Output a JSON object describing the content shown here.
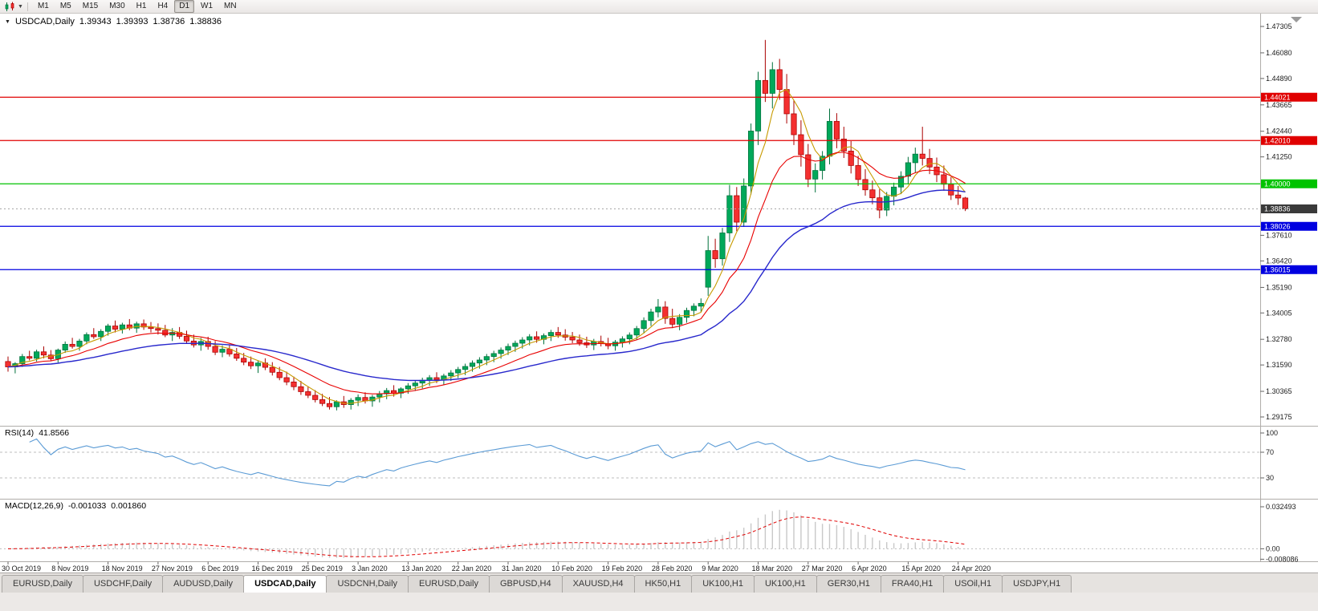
{
  "toolbar": {
    "timeframes": [
      "M1",
      "M5",
      "M15",
      "M30",
      "H1",
      "H4",
      "D1",
      "W1",
      "MN"
    ],
    "active_timeframe": "D1"
  },
  "chart": {
    "title_symbol": "USDCAD,Daily",
    "open": "1.39343",
    "high": "1.39393",
    "low": "1.38736",
    "close": "1.38836"
  },
  "indicators": {
    "rsi": {
      "name": "RSI(14)",
      "value": "41.8566"
    },
    "macd": {
      "name": "MACD(12,26,9)",
      "macd_value": "-0.001033",
      "signal_value": "0.001860"
    }
  },
  "tabs": [
    {
      "label": "EURUSD,Daily",
      "active": false
    },
    {
      "label": "USDCHF,Daily",
      "active": false
    },
    {
      "label": "AUDUSD,Daily",
      "active": false
    },
    {
      "label": "USDCAD,Daily",
      "active": true
    },
    {
      "label": "USDCNH,Daily",
      "active": false
    },
    {
      "label": "EURUSD,Daily",
      "active": false
    },
    {
      "label": "GBPUSD,H4",
      "active": false
    },
    {
      "label": "XAUUSD,H4",
      "active": false
    },
    {
      "label": "HK50,H1",
      "active": false
    },
    {
      "label": "UK100,H1",
      "active": false
    },
    {
      "label": "UK100,H1",
      "active": false
    },
    {
      "label": "GER30,H1",
      "active": false
    },
    {
      "label": "FRA40,H1",
      "active": false
    },
    {
      "label": "USOil,H1",
      "active": false
    },
    {
      "label": "USDJPY,H1",
      "active": false
    }
  ],
  "chart_data": {
    "type": "candlestick",
    "symbol": "USDCAD",
    "period": "Daily",
    "ylim": [
      1.28766,
      1.47901
    ],
    "y_axis_ticks": [
      "1.47305",
      "1.46080",
      "1.44890",
      "1.43665",
      "1.42440",
      "1.41250",
      "1.37610",
      "1.36420",
      "1.35190",
      "1.34005",
      "1.32780",
      "1.31590",
      "1.30365",
      "1.29175"
    ],
    "x_labels": [
      "30 Oct 2019",
      "8 Nov 2019",
      "18 Nov 2019",
      "27 Nov 2019",
      "6 Dec 2019",
      "16 Dec 2019",
      "25 Dec 2019",
      "3 Jan 2020",
      "13 Jan 2020",
      "22 Jan 2020",
      "31 Jan 2020",
      "10 Feb 2020",
      "19 Feb 2020",
      "28 Feb 2020",
      "9 Mar 2020",
      "18 Mar 2020",
      "27 Mar 2020",
      "6 Apr 2020",
      "15 Apr 2020",
      "24 Apr 2020"
    ],
    "label_every": 7,
    "colors": {
      "bull": "#00A85A",
      "bull_border": "#00713C",
      "bear": "#F43030",
      "bear_border": "#AA0000",
      "bid_line": "#A8A8A8",
      "bid_chip": "#3A3A3A",
      "rsi_line": "#5B9BD5",
      "level_dash": "#BDBDBD",
      "macd_bar": "#C8C8C8",
      "macd_signal": "#E00000",
      "separator": "#B0ADAA",
      "axis_tick": "#666666"
    },
    "h_lines": [
      {
        "price": 1.44021,
        "label": "1.44021",
        "color": "#E00000"
      },
      {
        "price": 1.4201,
        "label": "1.42010",
        "color": "#E00000"
      },
      {
        "price": 1.4,
        "label": "1.40000",
        "color": "#00C300"
      },
      {
        "price": 1.38026,
        "label": "1.38026",
        "color": "#0000E0"
      },
      {
        "price": 1.36015,
        "label": "1.36015",
        "color": "#0000E0"
      }
    ],
    "bid": {
      "price": 1.38836,
      "label": "1.38836"
    },
    "moving_averages": [
      {
        "type": "sma",
        "period": 5,
        "color": "#C79A00",
        "width": 1.1
      },
      {
        "type": "ema",
        "period": 13,
        "color": "#E80000",
        "width": 1.1
      },
      {
        "type": "ema",
        "period": 34,
        "color": "#2828CC",
        "width": 1.4
      }
    ],
    "rsi": {
      "period": 14,
      "ticks": [
        "100",
        "70",
        "30"
      ],
      "levels": [
        70,
        30
      ],
      "range": [
        0,
        100
      ]
    },
    "macd": {
      "fast": 12,
      "slow": 26,
      "signal": 9,
      "range": [
        -0.008086,
        0.032493
      ],
      "ticks": [
        {
          "label": "0.032493",
          "value": 0.032493
        },
        {
          "label": "0.00",
          "value": 0
        },
        {
          "label": "-0.008086",
          "value": -0.008086
        }
      ]
    },
    "candles": [
      [
        1.3175,
        1.3198,
        1.3128,
        1.315
      ],
      [
        1.315,
        1.3172,
        1.312,
        1.3165
      ],
      [
        1.3165,
        1.321,
        1.315,
        1.3198
      ],
      [
        1.3198,
        1.3225,
        1.318,
        1.319
      ],
      [
        1.319,
        1.323,
        1.3175,
        1.322
      ],
      [
        1.322,
        1.3245,
        1.319,
        1.3205
      ],
      [
        1.3205,
        1.3228,
        1.3178,
        1.3188
      ],
      [
        1.3188,
        1.3235,
        1.317,
        1.3228
      ],
      [
        1.3228,
        1.3268,
        1.3215,
        1.3255
      ],
      [
        1.3255,
        1.3285,
        1.3235,
        1.3245
      ],
      [
        1.3245,
        1.328,
        1.3225,
        1.327
      ],
      [
        1.327,
        1.331,
        1.3255,
        1.33
      ],
      [
        1.33,
        1.333,
        1.328,
        1.329
      ],
      [
        1.329,
        1.3325,
        1.327,
        1.3315
      ],
      [
        1.3315,
        1.335,
        1.3295,
        1.334
      ],
      [
        1.334,
        1.3365,
        1.331,
        1.3325
      ],
      [
        1.3325,
        1.3355,
        1.3305,
        1.3345
      ],
      [
        1.3345,
        1.3372,
        1.332,
        1.333
      ],
      [
        1.333,
        1.336,
        1.3308,
        1.335
      ],
      [
        1.335,
        1.337,
        1.3322,
        1.3335
      ],
      [
        1.3335,
        1.3358,
        1.331,
        1.3328
      ],
      [
        1.3328,
        1.3352,
        1.33,
        1.332
      ],
      [
        1.332,
        1.3345,
        1.3288,
        1.3298
      ],
      [
        1.3298,
        1.333,
        1.327,
        1.331
      ],
      [
        1.331,
        1.3335,
        1.328,
        1.3292
      ],
      [
        1.3292,
        1.3318,
        1.3258,
        1.327
      ],
      [
        1.327,
        1.33,
        1.324,
        1.3252
      ],
      [
        1.3252,
        1.3285,
        1.3225,
        1.3268
      ],
      [
        1.3268,
        1.329,
        1.323,
        1.3245
      ],
      [
        1.3245,
        1.327,
        1.3205,
        1.3218
      ],
      [
        1.3218,
        1.325,
        1.3195,
        1.3232
      ],
      [
        1.3232,
        1.3255,
        1.3198,
        1.321
      ],
      [
        1.321,
        1.3238,
        1.3178,
        1.319
      ],
      [
        1.319,
        1.3215,
        1.3158,
        1.3172
      ],
      [
        1.3172,
        1.3198,
        1.314,
        1.3155
      ],
      [
        1.3155,
        1.318,
        1.3122,
        1.3168
      ],
      [
        1.3168,
        1.319,
        1.3135,
        1.3148
      ],
      [
        1.3148,
        1.3172,
        1.311,
        1.3125
      ],
      [
        1.3125,
        1.315,
        1.3088,
        1.31
      ],
      [
        1.31,
        1.3128,
        1.3065,
        1.308
      ],
      [
        1.308,
        1.3105,
        1.3042,
        1.3058
      ],
      [
        1.3058,
        1.3085,
        1.302,
        1.3035
      ],
      [
        1.3035,
        1.306,
        1.3005,
        1.3018
      ],
      [
        1.3018,
        1.3042,
        1.2985,
        1.2998
      ],
      [
        1.2998,
        1.3025,
        1.2968,
        1.298
      ],
      [
        1.298,
        1.301,
        1.2952,
        1.2965
      ],
      [
        1.2965,
        1.2995,
        1.2948,
        1.2988
      ],
      [
        1.2988,
        1.3015,
        1.296,
        1.2975
      ],
      [
        1.2975,
        1.3005,
        1.2952,
        1.2995
      ],
      [
        1.2995,
        1.3022,
        1.2968,
        1.3008
      ],
      [
        1.3008,
        1.3032,
        1.298,
        1.2992
      ],
      [
        1.2992,
        1.302,
        1.2965,
        1.301
      ],
      [
        1.301,
        1.3038,
        1.2985,
        1.3025
      ],
      [
        1.3025,
        1.3052,
        1.3,
        1.304
      ],
      [
        1.304,
        1.3065,
        1.3012,
        1.3028
      ],
      [
        1.3028,
        1.3055,
        1.3005,
        1.3048
      ],
      [
        1.3048,
        1.3075,
        1.3025,
        1.3062
      ],
      [
        1.3062,
        1.3088,
        1.3038,
        1.3075
      ],
      [
        1.3075,
        1.31,
        1.305,
        1.3088
      ],
      [
        1.3088,
        1.3112,
        1.3062,
        1.31
      ],
      [
        1.31,
        1.3125,
        1.3075,
        1.309
      ],
      [
        1.309,
        1.3118,
        1.3068,
        1.3108
      ],
      [
        1.3108,
        1.3135,
        1.3085,
        1.3122
      ],
      [
        1.3122,
        1.315,
        1.3098,
        1.3138
      ],
      [
        1.3138,
        1.3165,
        1.3112,
        1.3152
      ],
      [
        1.3152,
        1.318,
        1.3128,
        1.3168
      ],
      [
        1.3168,
        1.3195,
        1.3142,
        1.3182
      ],
      [
        1.3182,
        1.321,
        1.3158,
        1.3198
      ],
      [
        1.3198,
        1.3225,
        1.3172,
        1.3212
      ],
      [
        1.3212,
        1.324,
        1.3188,
        1.3228
      ],
      [
        1.3228,
        1.3258,
        1.3205,
        1.3245
      ],
      [
        1.3245,
        1.3272,
        1.322,
        1.326
      ],
      [
        1.326,
        1.3288,
        1.3235,
        1.3275
      ],
      [
        1.3275,
        1.3302,
        1.325,
        1.329
      ],
      [
        1.329,
        1.3315,
        1.3262,
        1.3278
      ],
      [
        1.3278,
        1.3305,
        1.3255,
        1.3295
      ],
      [
        1.3295,
        1.3322,
        1.327,
        1.331
      ],
      [
        1.331,
        1.3335,
        1.3285,
        1.3298
      ],
      [
        1.3298,
        1.3325,
        1.3272,
        1.3288
      ],
      [
        1.3288,
        1.3312,
        1.326,
        1.3275
      ],
      [
        1.3275,
        1.33,
        1.3248,
        1.3262
      ],
      [
        1.3262,
        1.329,
        1.3238,
        1.3252
      ],
      [
        1.3252,
        1.328,
        1.3228,
        1.3268
      ],
      [
        1.3268,
        1.3295,
        1.3245,
        1.3258
      ],
      [
        1.3258,
        1.3285,
        1.3232,
        1.3248
      ],
      [
        1.3248,
        1.3275,
        1.3225,
        1.3265
      ],
      [
        1.3265,
        1.3292,
        1.324,
        1.328
      ],
      [
        1.328,
        1.331,
        1.3255,
        1.3298
      ],
      [
        1.3298,
        1.334,
        1.3275,
        1.3328
      ],
      [
        1.3328,
        1.338,
        1.3305,
        1.3365
      ],
      [
        1.3365,
        1.342,
        1.334,
        1.3405
      ],
      [
        1.3405,
        1.3465,
        1.338,
        1.3428
      ],
      [
        1.3428,
        1.3455,
        1.335,
        1.3375
      ],
      [
        1.3375,
        1.342,
        1.333,
        1.3348
      ],
      [
        1.3348,
        1.3395,
        1.332,
        1.338
      ],
      [
        1.338,
        1.3425,
        1.3355,
        1.3412
      ],
      [
        1.3412,
        1.3445,
        1.3385,
        1.3432
      ],
      [
        1.3432,
        1.3468,
        1.3405,
        1.3445
      ],
      [
        1.352,
        1.3758,
        1.348,
        1.369
      ],
      [
        1.369,
        1.3745,
        1.361,
        1.3652
      ],
      [
        1.3652,
        1.3795,
        1.362,
        1.3772
      ],
      [
        1.3772,
        1.3995,
        1.373,
        1.3945
      ],
      [
        1.3945,
        1.3985,
        1.378,
        1.3822
      ],
      [
        1.3822,
        1.4025,
        1.38,
        1.399
      ],
      [
        1.399,
        1.428,
        1.395,
        1.4245
      ],
      [
        1.4245,
        1.452,
        1.418,
        1.448
      ],
      [
        1.448,
        1.4668,
        1.438,
        1.442
      ],
      [
        1.442,
        1.4565,
        1.435,
        1.453
      ],
      [
        1.453,
        1.458,
        1.439,
        1.4438
      ],
      [
        1.4438,
        1.451,
        1.428,
        1.4325
      ],
      [
        1.4325,
        1.439,
        1.418,
        1.4228
      ],
      [
        1.4228,
        1.4295,
        1.408,
        1.4135
      ],
      [
        1.4135,
        1.4185,
        1.3985,
        1.4022
      ],
      [
        1.4022,
        1.4095,
        1.396,
        1.4062
      ],
      [
        1.4062,
        1.4152,
        1.402,
        1.4128
      ],
      [
        1.4128,
        1.4349,
        1.409,
        1.429
      ],
      [
        1.429,
        1.4328,
        1.4165,
        1.4208
      ],
      [
        1.4208,
        1.4265,
        1.412,
        1.4152
      ],
      [
        1.4152,
        1.4198,
        1.4048,
        1.4085
      ],
      [
        1.4085,
        1.413,
        1.399,
        1.402
      ],
      [
        1.402,
        1.4068,
        1.3945,
        1.3972
      ],
      [
        1.3972,
        1.4015,
        1.3905,
        1.3935
      ],
      [
        1.3935,
        1.3975,
        1.384,
        1.3878
      ],
      [
        1.3878,
        1.3962,
        1.385,
        1.3942
      ],
      [
        1.3942,
        1.4005,
        1.39,
        1.3985
      ],
      [
        1.3985,
        1.4058,
        1.3952,
        1.4035
      ],
      [
        1.4035,
        1.4125,
        1.3998,
        1.4098
      ],
      [
        1.4098,
        1.4168,
        1.4052,
        1.4138
      ],
      [
        1.4138,
        1.4265,
        1.4085,
        1.4118
      ],
      [
        1.4118,
        1.4162,
        1.4045,
        1.4078
      ],
      [
        1.4078,
        1.4122,
        1.4008,
        1.4042
      ],
      [
        1.4042,
        1.4085,
        1.3968,
        1.3998
      ],
      [
        1.3998,
        1.4032,
        1.3925,
        1.3948
      ],
      [
        1.3948,
        1.399,
        1.3902,
        1.3934
      ],
      [
        1.39343,
        1.39393,
        1.38736,
        1.38836
      ]
    ]
  }
}
